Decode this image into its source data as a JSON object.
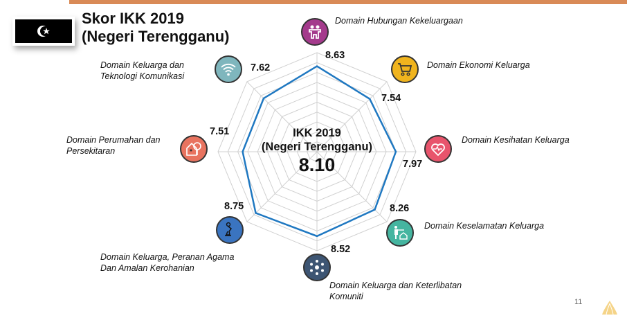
{
  "header": {
    "title_line1": "Skor IKK 2019",
    "title_line2": "(Negeri Terengganu)"
  },
  "center": {
    "line1": "IKK 2019",
    "line2": "(Negeri Terengganu)",
    "score": "8.10"
  },
  "page_number": "11",
  "colors": {
    "topbar": "#d98a57",
    "series": "#1f78c1",
    "grid": "#d0d0d0"
  },
  "chart_data": {
    "type": "radar",
    "title": "IKK 2019 (Negeri Terengganu)",
    "overall_score": 8.1,
    "range": [
      0,
      10
    ],
    "grid_rings": 10,
    "categories": [
      "Domain Hubungan Kekeluargaan",
      "Domain Ekonomi Keluarga",
      "Domain Kesihatan Keluarga",
      "Domain Keselamatan Keluarga",
      "Domain Keluarga dan Keterlibatan Komuniti",
      "Domain Keluarga, Peranan Agama Dan Amalan Kerohanian",
      "Domain Perumahan dan Persekitaran",
      "Domain Keluarga dan Teknologi Komunikasi"
    ],
    "values": [
      8.63,
      7.54,
      7.97,
      8.26,
      8.52,
      8.75,
      7.51,
      7.62
    ],
    "value_labels": [
      "8.63",
      "7.54",
      "7.97",
      "8.26",
      "8.52",
      "8.75",
      "7.51",
      "7.62"
    ],
    "series": [
      {
        "name": "Negeri Terengganu",
        "values": [
          8.63,
          7.54,
          7.97,
          8.26,
          8.52,
          8.75,
          7.51,
          7.62
        ]
      }
    ]
  },
  "domains": [
    {
      "label_line1": "Domain Hubungan Kekeluargaan",
      "label_line2": "",
      "icon": "family-icon",
      "color": "#a43a8c"
    },
    {
      "label_line1": "Domain Ekonomi Keluarga",
      "label_line2": "",
      "icon": "shopping-cart-icon",
      "color": "#f0b41e"
    },
    {
      "label_line1": "Domain Kesihatan Keluarga",
      "label_line2": "",
      "icon": "heart-pulse-icon",
      "color": "#e8546c"
    },
    {
      "label_line1": "Domain Keselamatan Keluarga",
      "label_line2": "",
      "icon": "safety-house-icon",
      "color": "#45b5a0"
    },
    {
      "label_line1": "Domain Keluarga dan Keterlibatan",
      "label_line2": "Komuniti",
      "icon": "network-icon",
      "color": "#3d5573"
    },
    {
      "label_line1": "Domain Keluarga, Peranan Agama",
      "label_line2": "Dan Amalan Kerohanian",
      "icon": "praying-icon",
      "color": "#3a74c0"
    },
    {
      "label_line1": "Domain Perumahan dan",
      "label_line2": "Persekitaran",
      "icon": "house-tree-icon",
      "color": "#e8735f"
    },
    {
      "label_line1": "Domain Keluarga dan",
      "label_line2": "Teknologi Komunikasi",
      "icon": "wifi-icon",
      "color": "#7fb6bd"
    }
  ]
}
